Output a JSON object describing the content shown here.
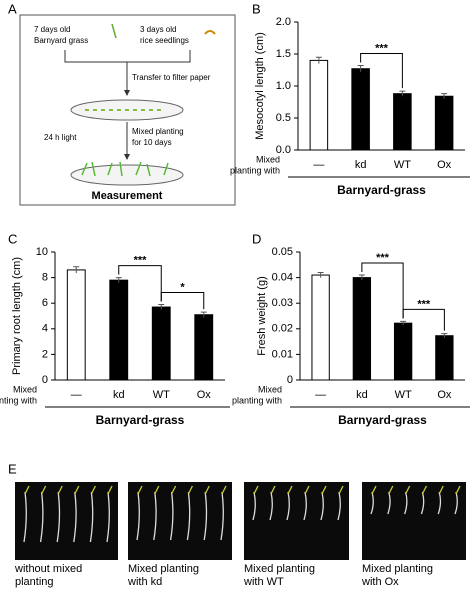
{
  "panel_labels": [
    "A",
    "B",
    "C",
    "D",
    "E"
  ],
  "diagram": {
    "barnyard": [
      "7 days old",
      "Barnyard grass"
    ],
    "rice": [
      "3 days old",
      "rice seedlings"
    ],
    "transfer": "Transfer to filter paper",
    "light": "24 h light",
    "mixed": [
      "Mixed planting",
      "for 10 days"
    ],
    "measurement": "Measurement"
  },
  "chart_data": [
    {
      "type": "bar",
      "ylabel": "Mesocotyl length (cm)",
      "categories": [
        "—",
        "kd",
        "WT",
        "Ox"
      ],
      "values": [
        1.4,
        1.27,
        0.88,
        0.84
      ],
      "errors": [
        0.05,
        0.05,
        0.04,
        0.04
      ],
      "colors": [
        "#ffffff",
        "#000000",
        "#000000",
        "#000000"
      ],
      "ylim": [
        0,
        2
      ],
      "yticks": [
        {
          "value": 0,
          "label": "0.0"
        },
        {
          "value": 0.5,
          "label": "0.5"
        },
        {
          "value": 1,
          "label": "1.0"
        },
        {
          "value": 1.5,
          "label": "1.5"
        },
        {
          "value": 2,
          "label": "2.0"
        }
      ],
      "x_label_lines": [
        "Mixed",
        "planting with"
      ],
      "group_label": "Barnyard-grass",
      "annotations": [
        {
          "label": "***"
        }
      ]
    },
    {
      "type": "bar",
      "ylabel": "Primary root length (cm)",
      "categories": [
        "—",
        "kd",
        "WT",
        "Ox"
      ],
      "values": [
        8.6,
        7.8,
        5.7,
        5.1
      ],
      "errors": [
        0.25,
        0.2,
        0.2,
        0.2
      ],
      "colors": [
        "#ffffff",
        "#000000",
        "#000000",
        "#000000"
      ],
      "ylim": [
        0,
        10
      ],
      "yticks": [
        0,
        2,
        4,
        6,
        8,
        10
      ],
      "x_label_lines": [
        "Mixed",
        "planting with"
      ],
      "group_label": "Barnyard-grass",
      "annotations": [
        {
          "label": "***"
        },
        {
          "label": "*"
        }
      ]
    },
    {
      "type": "bar",
      "ylabel": "Fresh weight (g)",
      "categories": [
        "—",
        "kd",
        "WT",
        "Ox"
      ],
      "values": [
        0.041,
        0.04,
        0.0222,
        0.0173
      ],
      "errors": [
        0.001,
        0.001,
        0.0007,
        0.0008
      ],
      "colors": [
        "#ffffff",
        "#000000",
        "#000000",
        "#000000"
      ],
      "ylim": [
        0,
        0.05
      ],
      "yticks": [
        0,
        0.01,
        0.02,
        0.03,
        0.04,
        0.05
      ],
      "x_label_lines": [
        "Mixed",
        "planting with"
      ],
      "group_label": "Barnyard-grass",
      "annotations": [
        {
          "label": "***"
        },
        {
          "label": "***"
        }
      ]
    }
  ],
  "photos": [
    {
      "caption": [
        "without mixed",
        "planting"
      ]
    },
    {
      "caption": [
        "Mixed planting",
        "with kd"
      ]
    },
    {
      "caption": [
        "Mixed planting",
        "with WT"
      ]
    },
    {
      "caption": [
        "Mixed planting",
        "with Ox"
      ]
    }
  ]
}
